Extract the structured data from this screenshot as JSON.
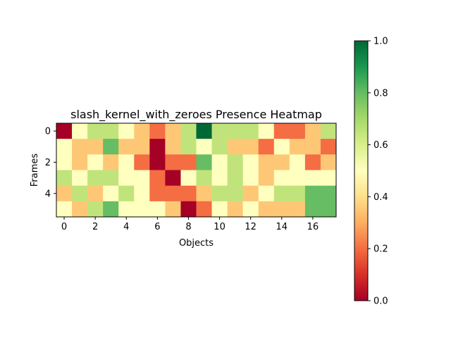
{
  "chart_data": [
    {
      "type": "heatmap",
      "title": "slash_kernel_with_zeroes Presence Heatmap",
      "xlabel": "Objects",
      "ylabel": "Frames",
      "x_ticks": [
        0,
        2,
        4,
        6,
        8,
        10,
        12,
        14,
        16
      ],
      "y_ticks": [
        0,
        2,
        4
      ],
      "colormap": "RdYlGn",
      "vmin": 0.0,
      "vmax": 1.0,
      "values": [
        [
          0.0,
          0.5,
          0.65,
          0.65,
          0.5,
          0.35,
          0.2,
          0.35,
          0.65,
          1.0,
          0.65,
          0.65,
          0.65,
          0.5,
          0.2,
          0.2,
          0.35,
          0.65
        ],
        [
          0.5,
          0.35,
          0.35,
          0.8,
          0.35,
          0.35,
          0.0,
          0.35,
          0.65,
          0.5,
          0.65,
          0.35,
          0.35,
          0.2,
          0.5,
          0.35,
          0.35,
          0.2
        ],
        [
          0.5,
          0.35,
          0.5,
          0.35,
          0.5,
          0.2,
          0.0,
          0.2,
          0.2,
          0.8,
          0.5,
          0.65,
          0.5,
          0.35,
          0.35,
          0.5,
          0.2,
          0.35
        ],
        [
          0.65,
          0.5,
          0.65,
          0.65,
          0.5,
          0.5,
          0.2,
          0.0,
          0.5,
          0.65,
          0.5,
          0.65,
          0.5,
          0.35,
          0.5,
          0.5,
          0.5,
          0.5
        ],
        [
          0.35,
          0.65,
          0.35,
          0.5,
          0.65,
          0.5,
          0.2,
          0.2,
          0.2,
          0.35,
          0.65,
          0.65,
          0.35,
          0.5,
          0.65,
          0.65,
          0.8,
          0.8
        ],
        [
          0.5,
          0.35,
          0.65,
          0.8,
          0.5,
          0.5,
          0.5,
          0.35,
          0.0,
          0.2,
          0.5,
          0.35,
          0.5,
          0.35,
          0.35,
          0.35,
          0.8,
          0.8
        ]
      ],
      "colorbar": {
        "ticks": [
          "0.0",
          "0.2",
          "0.4",
          "0.6",
          "0.8",
          "1.0"
        ]
      }
    }
  ]
}
